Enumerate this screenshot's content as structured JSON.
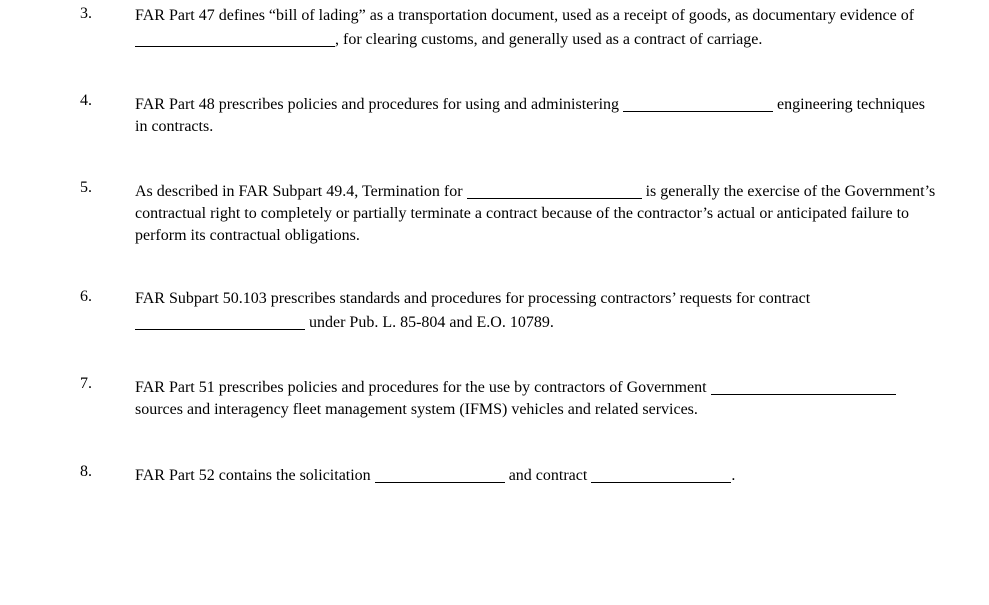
{
  "questions": [
    {
      "number": "3.",
      "segments": [
        {
          "type": "text",
          "value": "FAR Part 47 defines “bill of lading” as a transportation document, used as a receipt of goods, as documentary evidence of "
        },
        {
          "type": "blank",
          "cls": "w1"
        },
        {
          "type": "text",
          "value": ", for clearing customs, and generally used as a contract of carriage."
        }
      ]
    },
    {
      "number": "4.",
      "segments": [
        {
          "type": "text",
          "value": "FAR Part 48 prescribes policies and procedures for using and administering "
        },
        {
          "type": "blank",
          "cls": "w2"
        },
        {
          "type": "text",
          "value": " engineering techniques in contracts."
        }
      ]
    },
    {
      "number": "5.",
      "segments": [
        {
          "type": "text",
          "value": "As described in FAR Subpart 49.4, Termination for "
        },
        {
          "type": "blank",
          "cls": "w3"
        },
        {
          "type": "text",
          "value": " is generally the exercise of the Government’s contractual right to completely or partially terminate a contract because of the contractor’s actual or anticipated failure to perform its contractual obligations."
        }
      ]
    },
    {
      "number": "6.",
      "segments": [
        {
          "type": "text",
          "value": "FAR Subpart 50.103 prescribes standards and procedures for processing contractors’ requests for contract "
        },
        {
          "type": "blank",
          "cls": "w4"
        },
        {
          "type": "text",
          "value": " under Pub. L. 85-804 and E.O. 10789."
        }
      ]
    },
    {
      "number": "7.",
      "segments": [
        {
          "type": "text",
          "value": "FAR Part 51 prescribes policies and procedures for the use by contractors of Government "
        },
        {
          "type": "blank",
          "cls": "w5"
        },
        {
          "type": "text",
          "value": " sources and interagency fleet management system (IFMS) vehicles and related services."
        }
      ]
    },
    {
      "number": "8.",
      "segments": [
        {
          "type": "text",
          "value": "FAR Part 52 contains the solicitation "
        },
        {
          "type": "blank",
          "cls": "w6"
        },
        {
          "type": "text",
          "value": " and contract "
        },
        {
          "type": "blank",
          "cls": "w7"
        },
        {
          "type": "text",
          "value": "."
        }
      ]
    }
  ]
}
